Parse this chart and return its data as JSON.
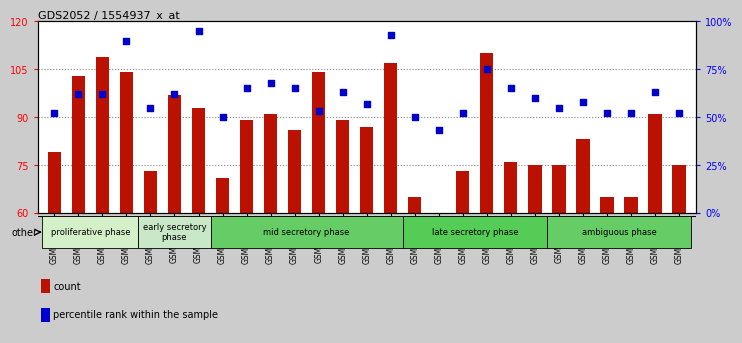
{
  "title": "GDS2052 / 1554937_x_at",
  "categories": [
    "GSM109814",
    "GSM109815",
    "GSM109816",
    "GSM109817",
    "GSM109820",
    "GSM109821",
    "GSM109822",
    "GSM109824",
    "GSM109825",
    "GSM109826",
    "GSM109827",
    "GSM109828",
    "GSM109829",
    "GSM109830",
    "GSM109831",
    "GSM109834",
    "GSM109835",
    "GSM109836",
    "GSM109837",
    "GSM109838",
    "GSM109839",
    "GSM109818",
    "GSM109819",
    "GSM109823",
    "GSM109832",
    "GSM109833",
    "GSM109840"
  ],
  "bar_values": [
    79,
    103,
    109,
    104,
    73,
    97,
    93,
    71,
    89,
    91,
    86,
    104,
    89,
    87,
    107,
    65,
    60,
    73,
    110,
    76,
    75,
    75,
    83,
    65,
    65,
    91,
    75
  ],
  "percentile_values": [
    52,
    62,
    62,
    90,
    55,
    62,
    95,
    50,
    65,
    68,
    65,
    53,
    63,
    57,
    93,
    50,
    43,
    52,
    75,
    65,
    60,
    55,
    58,
    52,
    52,
    63,
    52
  ],
  "phase_groups": [
    {
      "label": "proliferative phase",
      "start": 0,
      "end": 4,
      "color": "#d4f0c8"
    },
    {
      "label": "early secretory\nphase",
      "start": 4,
      "end": 7,
      "color": "#c8e8c8"
    },
    {
      "label": "mid secretory phase",
      "start": 7,
      "end": 15,
      "color": "#66cc66"
    },
    {
      "label": "late secretory phase",
      "start": 15,
      "end": 21,
      "color": "#55cc55"
    },
    {
      "label": "ambiguous phase",
      "start": 21,
      "end": 27,
      "color": "#66cc66"
    }
  ],
  "ylim_min": 60,
  "ylim_max": 120,
  "yticks": [
    60,
    75,
    90,
    105,
    120
  ],
  "y2ticks": [
    0,
    25,
    50,
    75,
    100
  ],
  "gridlines": [
    75,
    90,
    105
  ],
  "bar_color": "#bb1100",
  "dot_color": "#0000cc",
  "bg_color": "#cccccc",
  "plot_bg_color": "#ffffff",
  "grid_color": "#888888",
  "other_label": "other"
}
